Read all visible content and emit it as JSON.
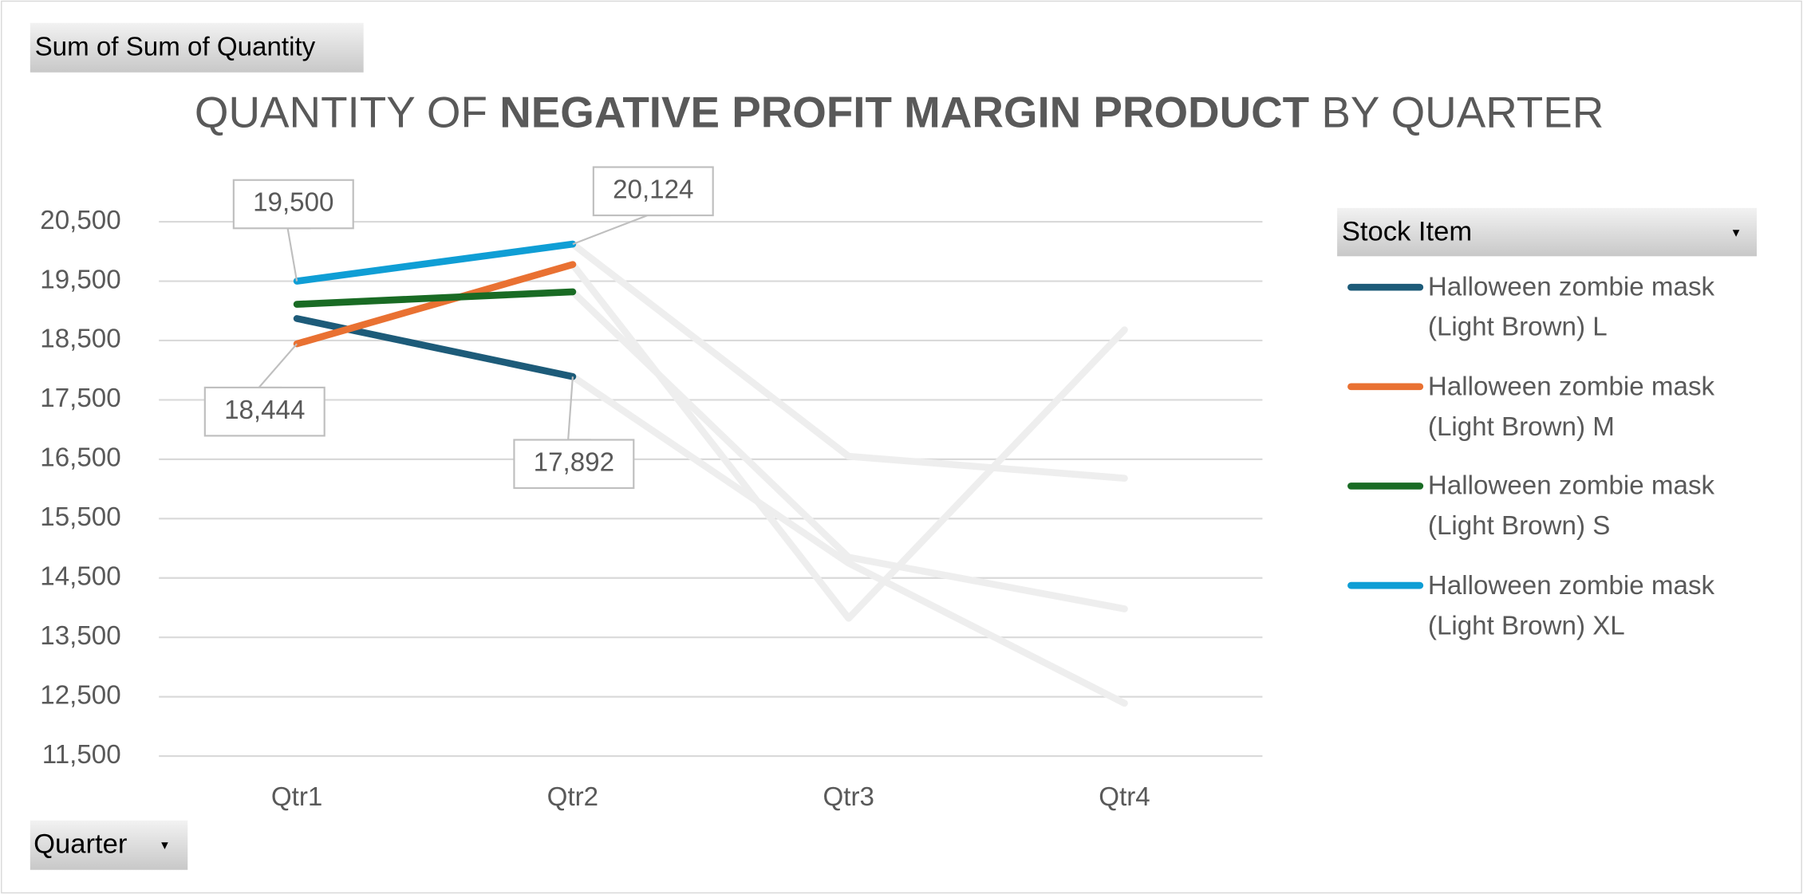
{
  "chart_data": {
    "type": "line",
    "field_buttons": {
      "values": "Sum of Sum of Quantity",
      "legend": "Stock Item",
      "axis": "Quarter"
    },
    "title": {
      "prefix": "QUANTITY OF",
      "emphasis": "NEGATIVE PROFIT MARGIN PRODUCT",
      "suffix": "BY QUARTER"
    },
    "categories": [
      "Qtr1",
      "Qtr2",
      "Qtr3",
      "Qtr4"
    ],
    "series": [
      {
        "name": "Halloween zombie mask (Light Brown) L",
        "color": "#1d5b79",
        "values": [
          18870,
          17892,
          14750,
          12390
        ],
        "value_labels": [
          null,
          "17,892",
          null,
          null
        ]
      },
      {
        "name": "Halloween zombie mask (Light Brown) M",
        "color": "#e97132",
        "values": [
          18444,
          19780,
          13820,
          18680
        ],
        "value_labels": [
          "18,444",
          null,
          null,
          null
        ]
      },
      {
        "name": "Halloween zombie mask (Light Brown) S",
        "color": "#196b24",
        "values": [
          19110,
          19320,
          14850,
          13980
        ],
        "value_labels": [
          null,
          null,
          null,
          null
        ]
      },
      {
        "name": "Halloween zombie mask (Light Brown) XL",
        "color": "#0f9ed5",
        "values": [
          19500,
          20124,
          16550,
          16180
        ],
        "value_labels": [
          "19,500",
          "20,124",
          null,
          null
        ]
      }
    ],
    "highlight": {
      "last_index": 1,
      "faded_color": "#eeeeee"
    },
    "ylim": [
      11500,
      20500
    ],
    "yticks": [
      {
        "value": 11500,
        "label": "11,500"
      },
      {
        "value": 12500,
        "label": "12,500"
      },
      {
        "value": 13500,
        "label": "13,500"
      },
      {
        "value": 14500,
        "label": "14,500"
      },
      {
        "value": 15500,
        "label": "15,500"
      },
      {
        "value": 16500,
        "label": "16,500"
      },
      {
        "value": 17500,
        "label": "17,500"
      },
      {
        "value": 18500,
        "label": "18,500"
      },
      {
        "value": 19500,
        "label": "19,500"
      },
      {
        "value": 20500,
        "label": "20,500"
      }
    ],
    "grid": true,
    "legend": "right"
  }
}
